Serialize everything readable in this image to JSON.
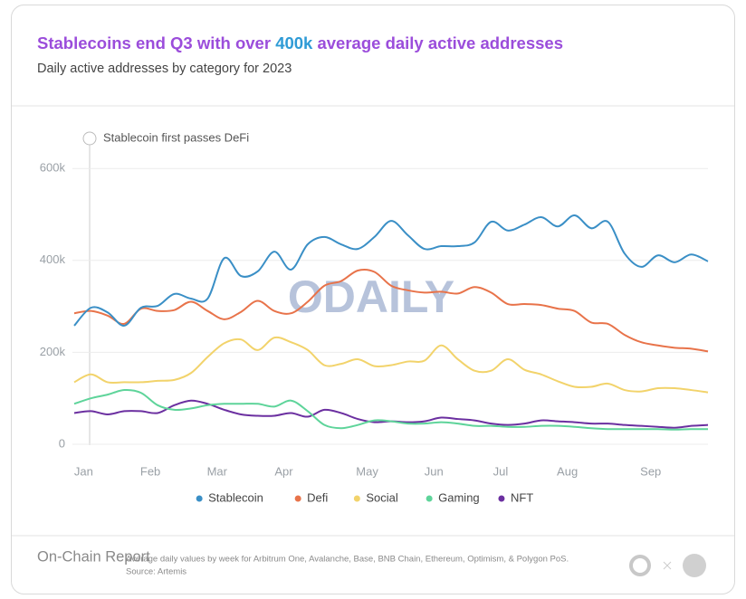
{
  "chart_data": {
    "type": "line",
    "title": [
      "Stablecoins end Q3 with over ",
      "400k",
      " average daily active addresses"
    ],
    "subtitle": "Daily active addresses by category for 2023",
    "annotation": "Stablecoin first passes DeFi",
    "watermark": "ODAILY",
    "footer_title": "On-Chain Report",
    "footnote": "Average daily values by week for Arbitrum One, Avalanche, Base, BNB Chain, Ethereum, Optimism, & Polygon PoS.",
    "source": "Source: Artemis",
    "categories": [
      null,
      "Jan",
      null,
      null,
      null,
      "Feb",
      null,
      null,
      null,
      "Mar",
      null,
      null,
      null,
      "Apr",
      null,
      null,
      null,
      null,
      "May",
      null,
      null,
      null,
      "Jun",
      null,
      null,
      null,
      "Jul",
      null,
      null,
      null,
      "Aug",
      null,
      null,
      null,
      null,
      "Sep",
      null,
      null,
      null
    ],
    "ylim": [
      0,
      650000
    ],
    "yticks": [
      0,
      {
        "value": 200000,
        "label": "200k"
      },
      {
        "value": 400000,
        "label": "400k"
      },
      {
        "value": 600000,
        "label": "600k"
      }
    ],
    "grid": true,
    "legend": "bottom",
    "series": [
      {
        "name": "Stablecoin",
        "color": "#3a8fc6",
        "values": [
          258000,
          297000,
          287000,
          258000,
          297000,
          301000,
          327000,
          317000,
          317000,
          405000,
          366000,
          376000,
          419000,
          380000,
          435000,
          451000,
          435000,
          425000,
          451000,
          486000,
          455000,
          425000,
          431000,
          431000,
          439000,
          484000,
          465000,
          478000,
          494000,
          474000,
          498000,
          470000,
          484000,
          415000,
          386000,
          411000,
          396000,
          413000,
          398000
        ]
      },
      {
        "name": "Defi",
        "color": "#e8734a",
        "values": [
          285000,
          290000,
          280000,
          262000,
          295000,
          290000,
          292000,
          310000,
          290000,
          272000,
          288000,
          312000,
          290000,
          285000,
          310000,
          345000,
          355000,
          378000,
          375000,
          345000,
          335000,
          330000,
          332000,
          328000,
          342000,
          330000,
          305000,
          305000,
          303000,
          295000,
          290000,
          265000,
          262000,
          238000,
          222000,
          215000,
          210000,
          208000,
          202000
        ]
      },
      {
        "name": "Social",
        "color": "#f2d36b",
        "values": [
          135000,
          152000,
          135000,
          135000,
          135000,
          138000,
          140000,
          155000,
          190000,
          220000,
          228000,
          205000,
          232000,
          222000,
          205000,
          172000,
          175000,
          185000,
          170000,
          172000,
          180000,
          182000,
          215000,
          185000,
          160000,
          160000,
          185000,
          162000,
          152000,
          137000,
          125000,
          125000,
          132000,
          118000,
          115000,
          122000,
          122000,
          118000,
          113000
        ]
      },
      {
        "name": "Gaming",
        "color": "#5ed49a",
        "values": [
          88000,
          100000,
          108000,
          118000,
          112000,
          85000,
          75000,
          78000,
          85000,
          88000,
          88000,
          88000,
          82000,
          95000,
          72000,
          42000,
          35000,
          42000,
          52000,
          50000,
          45000,
          45000,
          48000,
          45000,
          40000,
          40000,
          38000,
          38000,
          40000,
          40000,
          38000,
          35000,
          33000,
          33000,
          33000,
          33000,
          32000,
          33000,
          33000
        ]
      },
      {
        "name": "NFT",
        "color": "#6b2fa0",
        "values": [
          68000,
          72000,
          65000,
          72000,
          72000,
          68000,
          85000,
          95000,
          88000,
          75000,
          65000,
          62000,
          62000,
          68000,
          60000,
          75000,
          68000,
          55000,
          48000,
          50000,
          48000,
          50000,
          58000,
          55000,
          52000,
          45000,
          42000,
          45000,
          52000,
          50000,
          48000,
          45000,
          45000,
          42000,
          40000,
          38000,
          36000,
          40000,
          42000
        ]
      }
    ]
  }
}
